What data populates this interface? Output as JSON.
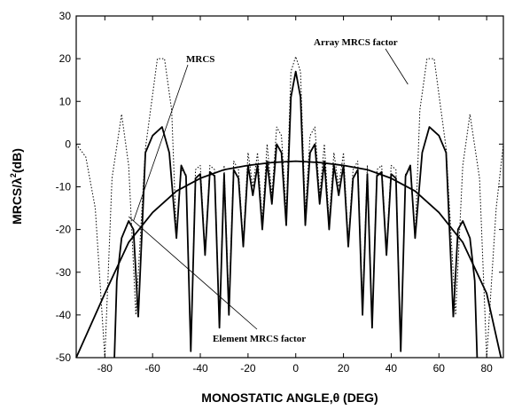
{
  "chart_data": {
    "type": "line",
    "title": "",
    "xlabel": "MONOSTATIC ANGLE,θ (DEG)",
    "ylabel_main": "MRCS/λ",
    "ylabel_sup": "2",
    "ylabel_tail": "(dB)",
    "xlim": [
      -92,
      87
    ],
    "ylim": [
      -50,
      30
    ],
    "xticks": [
      -80,
      -60,
      -40,
      -20,
      0,
      20,
      40,
      60,
      80
    ],
    "xtick_labels": [
      "-80",
      "-60",
      "-40",
      "-20",
      "0",
      "20",
      "40",
      "60",
      "80"
    ],
    "yticks": [
      -50,
      -40,
      -30,
      -20,
      -10,
      0,
      10,
      20,
      30
    ],
    "ytick_labels": [
      "-50",
      "-40",
      "-30",
      "-20",
      "-10",
      "0",
      "10",
      "20",
      "30"
    ],
    "grid": false,
    "legend": "none",
    "annotations": [
      {
        "text": "MRCS",
        "target_x": -68,
        "target_y": -18
      },
      {
        "text": "Array MRCS factor",
        "target_x": 47,
        "target_y": 14
      },
      {
        "text": "Element MRCS factor",
        "target_x": -70,
        "target_y": -17
      }
    ],
    "series": [
      {
        "style": "solid",
        "points": [
          [
            -66,
            -40.5
          ],
          [
            -63,
            -2
          ],
          [
            -60,
            2
          ],
          [
            -56,
            4
          ],
          [
            -53,
            -2
          ],
          [
            -50,
            -22
          ],
          [
            -48,
            -5
          ],
          [
            -46,
            -7.5
          ],
          [
            -44,
            -48.5
          ],
          [
            -42,
            -8
          ],
          [
            -40,
            -7
          ],
          [
            -38,
            -26
          ],
          [
            -36,
            -6.5
          ],
          [
            -34,
            -7.5
          ],
          [
            -32,
            -43
          ],
          [
            -30,
            -7
          ],
          [
            -28,
            -40
          ],
          [
            -26,
            -6
          ],
          [
            -24,
            -8
          ],
          [
            -22,
            -24
          ],
          [
            -20,
            -5
          ],
          [
            -18,
            -12
          ],
          [
            -16,
            -5
          ],
          [
            -14,
            -20
          ],
          [
            -12,
            -4
          ],
          [
            -10,
            -14
          ],
          [
            -8,
            0
          ],
          [
            -6,
            -2
          ],
          [
            -4,
            -19
          ],
          [
            -2,
            11
          ],
          [
            0,
            17
          ],
          [
            2,
            11
          ],
          [
            4,
            -19
          ],
          [
            6,
            -2
          ],
          [
            8,
            0
          ],
          [
            10,
            -14
          ],
          [
            12,
            -4
          ],
          [
            14,
            -20
          ],
          [
            16,
            -5
          ],
          [
            18,
            -12
          ],
          [
            20,
            -5
          ],
          [
            22,
            -24
          ],
          [
            24,
            -8
          ],
          [
            26,
            -6
          ],
          [
            28,
            -40
          ],
          [
            30,
            -7
          ],
          [
            32,
            -43
          ],
          [
            34,
            -7.5
          ],
          [
            36,
            -6.5
          ],
          [
            38,
            -26
          ],
          [
            40,
            -7
          ],
          [
            42,
            -8
          ],
          [
            44,
            -48.5
          ],
          [
            46,
            -7.5
          ],
          [
            48,
            -5
          ],
          [
            50,
            -22
          ],
          [
            53,
            -2
          ],
          [
            56,
            4
          ],
          [
            60,
            2
          ],
          [
            63,
            -2
          ],
          [
            66,
            -40.5
          ]
        ]
      },
      {
        "style": "solid",
        "points": [
          [
            -66,
            -40.5
          ],
          [
            -68,
            -20
          ],
          [
            -70,
            -18
          ],
          [
            -73,
            -22
          ],
          [
            -75,
            -32
          ],
          [
            -76,
            -50
          ]
        ]
      },
      {
        "style": "solid",
        "points": [
          [
            66,
            -40.5
          ],
          [
            68,
            -20
          ],
          [
            70,
            -18
          ],
          [
            73,
            -22
          ],
          [
            75,
            -32
          ],
          [
            76,
            -50
          ]
        ]
      },
      {
        "style": "solid",
        "points": [
          [
            -92,
            -50
          ],
          [
            -80,
            -35
          ],
          [
            -70,
            -23
          ],
          [
            -60,
            -16
          ],
          [
            -50,
            -11
          ],
          [
            -40,
            -8
          ],
          [
            -30,
            -6
          ],
          [
            -20,
            -5
          ],
          [
            -10,
            -4.3
          ],
          [
            0,
            -4
          ],
          [
            10,
            -4.3
          ],
          [
            20,
            -5
          ],
          [
            30,
            -6
          ],
          [
            40,
            -8
          ],
          [
            50,
            -11
          ],
          [
            60,
            -16
          ],
          [
            70,
            -23
          ],
          [
            80,
            -35
          ],
          [
            86,
            -50
          ]
        ]
      },
      {
        "style": "dotted",
        "points": [
          [
            -92,
            0
          ],
          [
            -88,
            -3
          ],
          [
            -84,
            -15
          ],
          [
            -80,
            -50
          ],
          [
            -77,
            -8
          ],
          [
            -73,
            7
          ],
          [
            -70,
            -5
          ],
          [
            -67,
            -40
          ],
          [
            -63,
            -1
          ],
          [
            -58,
            20
          ],
          [
            -55,
            20
          ],
          [
            -52,
            8
          ],
          [
            -50,
            -22
          ],
          [
            -48,
            -6
          ],
          [
            -46,
            -7
          ],
          [
            -44,
            -48
          ],
          [
            -42,
            -6
          ],
          [
            -40,
            -5
          ],
          [
            -38,
            -25
          ],
          [
            -36,
            -5
          ],
          [
            -34,
            -6
          ],
          [
            -32,
            -42
          ],
          [
            -30,
            -5
          ],
          [
            -28,
            -38
          ],
          [
            -26,
            -4
          ],
          [
            -24,
            -6
          ],
          [
            -22,
            -23
          ],
          [
            -20,
            -2
          ],
          [
            -18,
            -10
          ],
          [
            -16,
            -2
          ],
          [
            -14,
            -18
          ],
          [
            -12,
            0
          ],
          [
            -10,
            -12
          ],
          [
            -8,
            4
          ],
          [
            -6,
            2
          ],
          [
            -4,
            -16
          ],
          [
            -2,
            17
          ],
          [
            0,
            20.5
          ],
          [
            2,
            17
          ],
          [
            4,
            -16
          ],
          [
            6,
            2
          ],
          [
            8,
            4
          ],
          [
            10,
            -12
          ],
          [
            12,
            0
          ],
          [
            14,
            -18
          ],
          [
            16,
            -2
          ],
          [
            18,
            -10
          ],
          [
            20,
            -2
          ],
          [
            22,
            -23
          ],
          [
            24,
            -6
          ],
          [
            26,
            -4
          ],
          [
            28,
            -38
          ],
          [
            30,
            -5
          ],
          [
            32,
            -42
          ],
          [
            34,
            -6
          ],
          [
            36,
            -5
          ],
          [
            38,
            -25
          ],
          [
            40,
            -5
          ],
          [
            42,
            -6
          ],
          [
            44,
            -48
          ],
          [
            46,
            -7
          ],
          [
            48,
            -6
          ],
          [
            50,
            -22
          ],
          [
            52,
            8
          ],
          [
            55,
            20
          ],
          [
            58,
            20
          ],
          [
            63,
            -1
          ],
          [
            67,
            -40
          ],
          [
            70,
            -5
          ],
          [
            73,
            7
          ],
          [
            77,
            -8
          ],
          [
            80,
            -50
          ],
          [
            84,
            -15
          ],
          [
            87,
            0
          ]
        ]
      }
    ]
  }
}
